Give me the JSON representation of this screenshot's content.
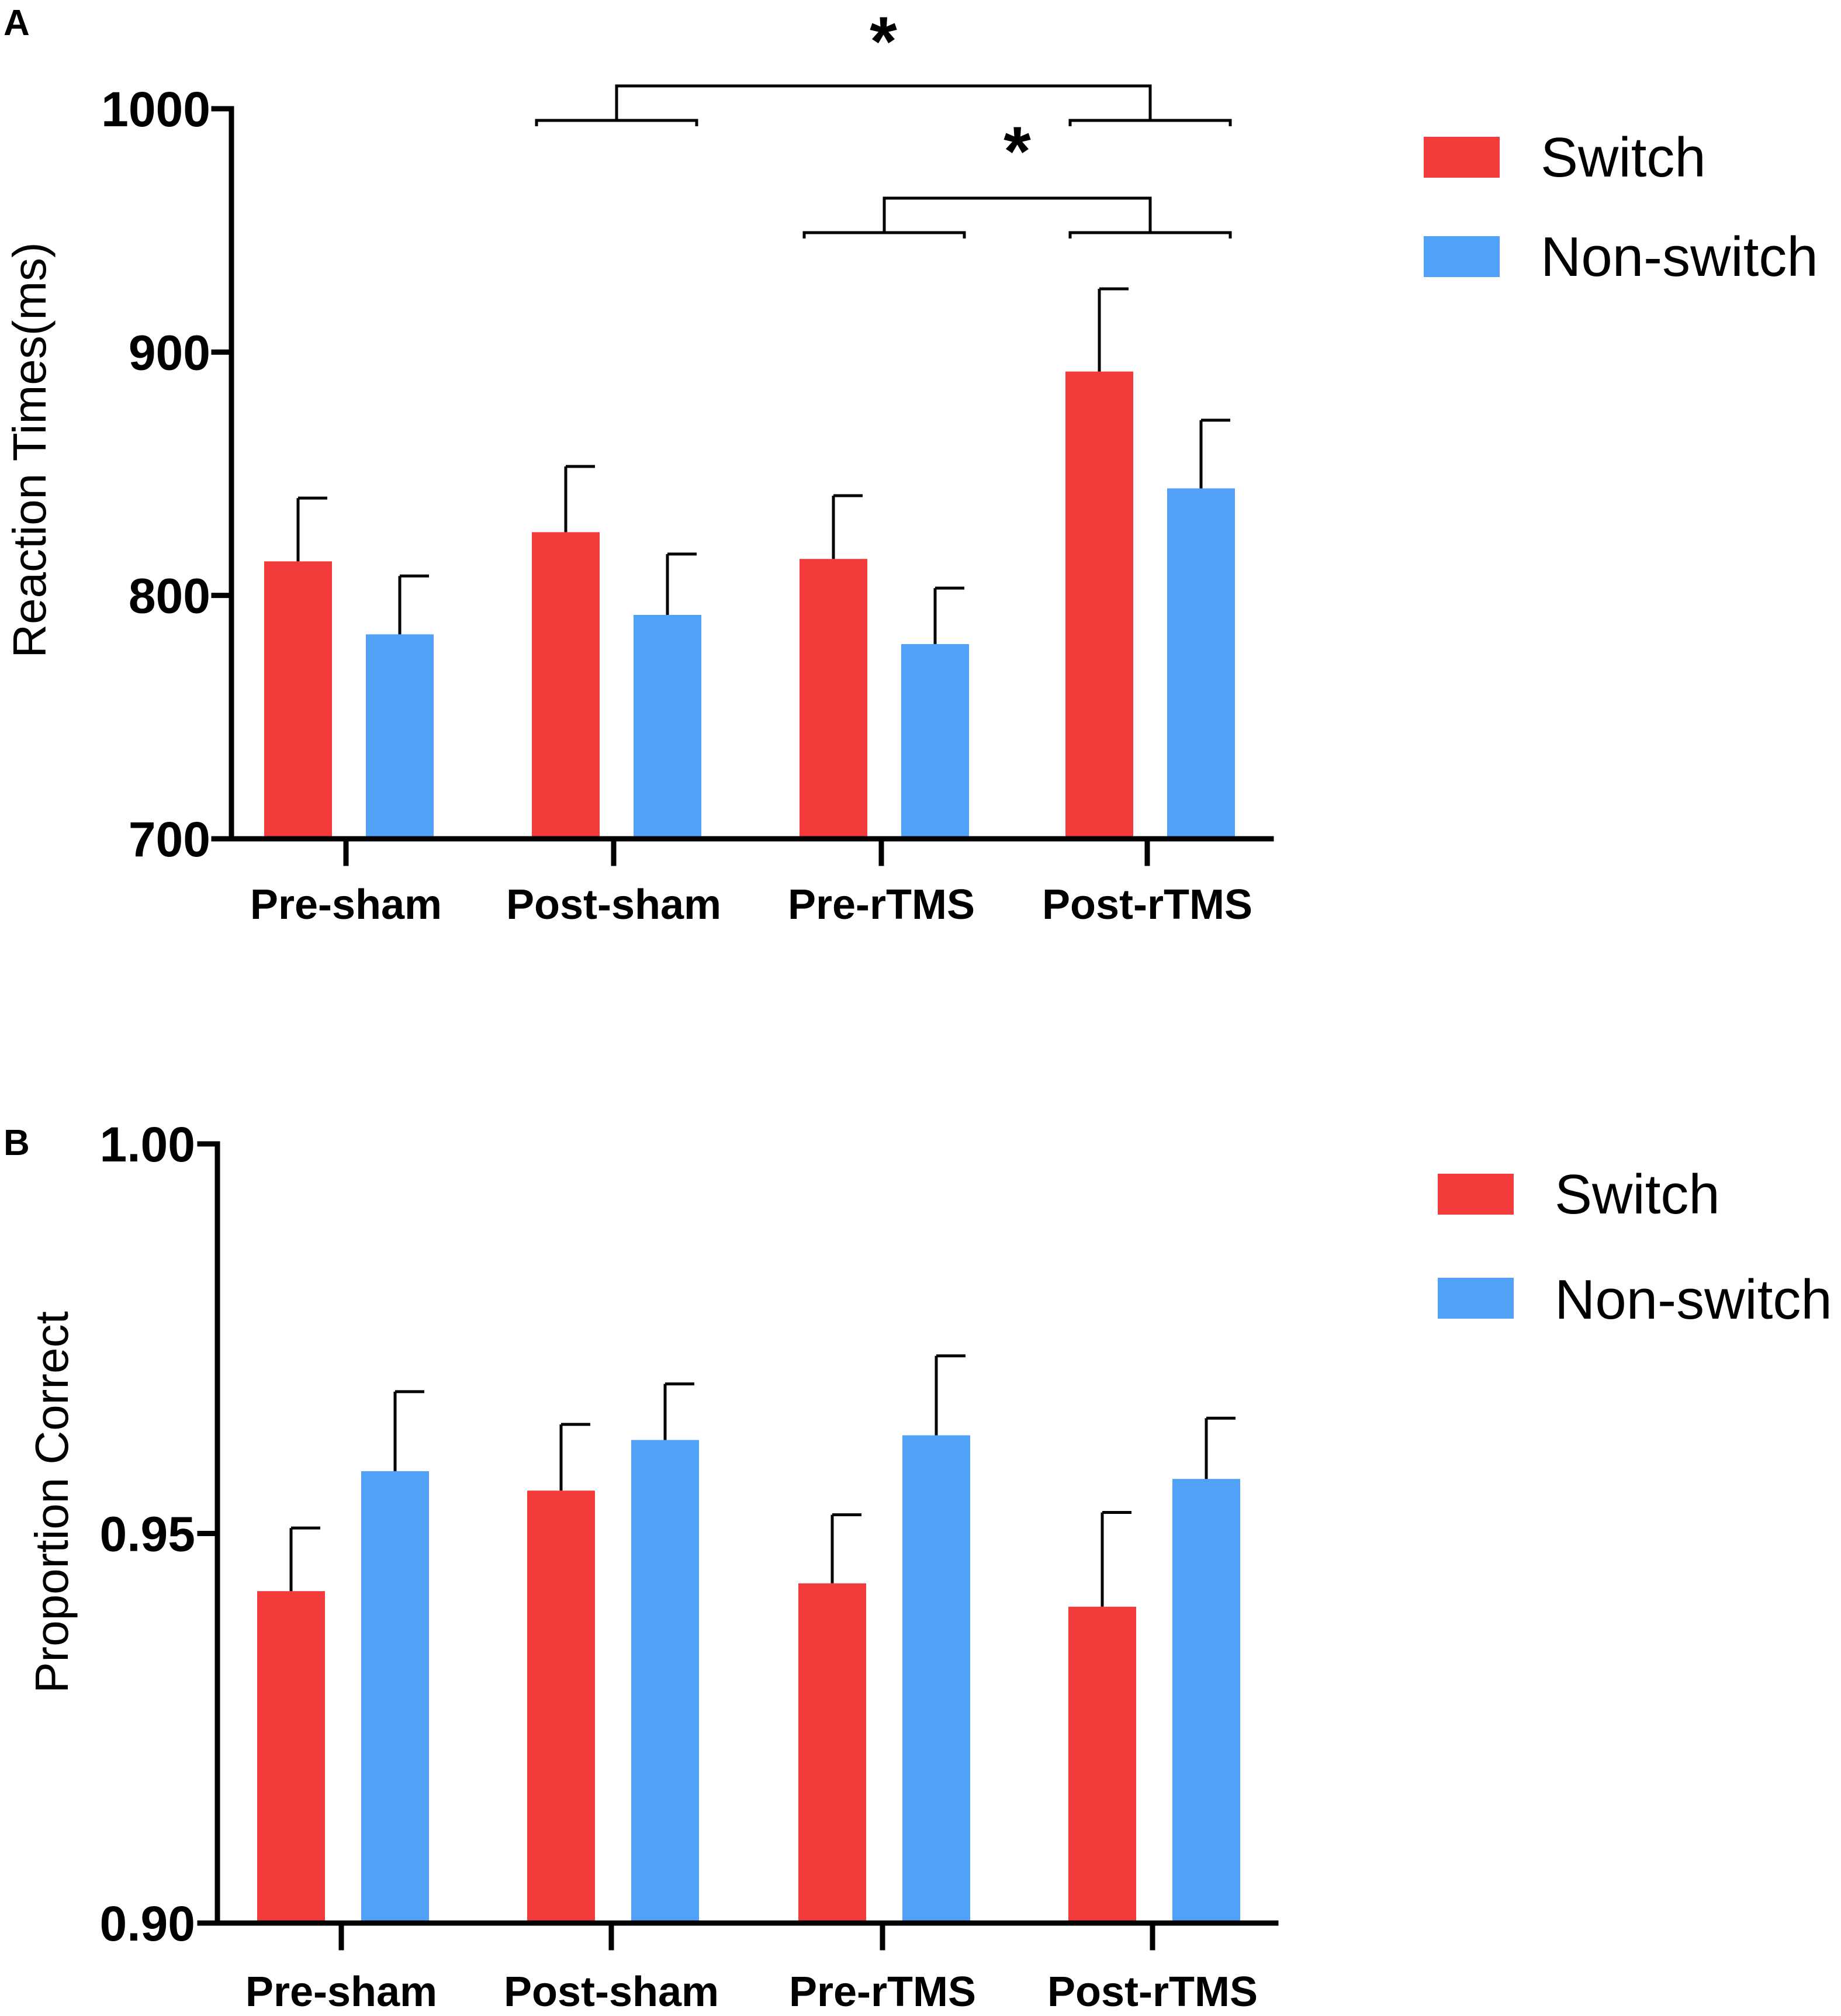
{
  "chart_data": [
    {
      "panel": "A",
      "type": "bar",
      "title": "",
      "xlabel": "",
      "ylabel": "Reaction Times(ms)",
      "ylim": [
        700,
        1000
      ],
      "yticks": [
        "700",
        "800",
        "900",
        "1000"
      ],
      "categories": [
        "Pre-sham",
        "Post-sham",
        "Pre-rTMS",
        "Post-rTMS"
      ],
      "series": [
        {
          "name": "Switch",
          "color": "#f43b3b",
          "values": [
            814,
            826,
            815,
            892
          ],
          "errors": [
            26,
            27,
            26,
            34
          ]
        },
        {
          "name": "Non-switch",
          "color": "#52a1f9",
          "values": [
            784,
            792,
            780,
            844
          ],
          "errors": [
            24,
            25,
            23,
            28
          ]
        }
      ],
      "annotations": [
        {
          "label": "*",
          "from": "Post-sham",
          "to": "Post-rTMS"
        },
        {
          "label": "*",
          "from": "Pre-rTMS",
          "to": "Post-rTMS"
        }
      ],
      "legend": "top-right",
      "grid": false
    },
    {
      "panel": "B",
      "type": "bar",
      "title": "",
      "xlabel": "",
      "ylabel": "Proportion Correct",
      "ylim": [
        0.9,
        1.0
      ],
      "yticks": [
        "0.90",
        "0.95",
        "1.00"
      ],
      "categories": [
        "Pre-sham",
        "Post-sham",
        "Pre-rTMS",
        "Post-rTMS"
      ],
      "series": [
        {
          "name": "Switch",
          "color": "#f43b3b",
          "values": [
            0.9426,
            0.9555,
            0.9436,
            0.9406
          ],
          "errors": [
            0.0081,
            0.0085,
            0.0088,
            0.0121
          ]
        },
        {
          "name": "Non-switch",
          "color": "#52a1f9",
          "values": [
            0.958,
            0.962,
            0.9626,
            0.957
          ],
          "errors": [
            0.0102,
            0.0072,
            0.0102,
            0.0078
          ]
        }
      ],
      "legend": "top-right",
      "grid": false
    }
  ]
}
